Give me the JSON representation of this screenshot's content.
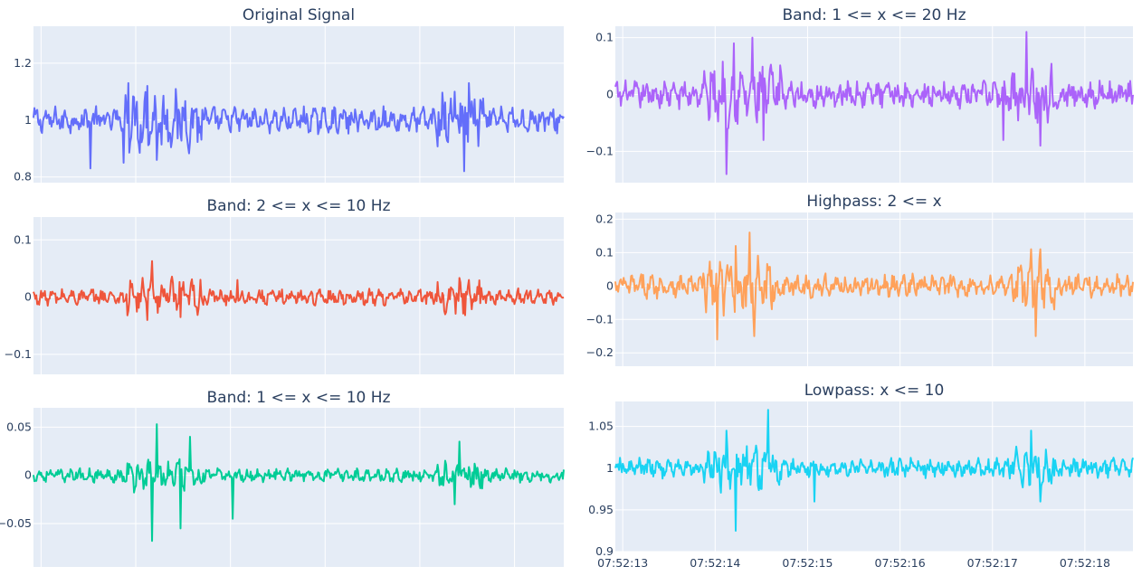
{
  "chart_data": [
    {
      "type": "line",
      "title": "Original Signal",
      "color": "#636efa",
      "ylim": [
        0.78,
        1.33
      ],
      "yticks": [
        {
          "v": 0.8,
          "label": "0.8"
        },
        {
          "v": 1.0,
          "label": "1"
        },
        {
          "v": 1.2,
          "label": "1.2"
        }
      ],
      "baseline": 1.0,
      "amp_scale": 0.04,
      "spikes": [
        {
          "t": 0.6,
          "v": 0.83
        },
        {
          "t": 0.95,
          "v": 0.85
        },
        {
          "t": 1.0,
          "v": 1.13
        },
        {
          "t": 1.2,
          "v": 1.12
        },
        {
          "t": 1.3,
          "v": 0.86
        },
        {
          "t": 4.55,
          "v": 0.82
        },
        {
          "t": 4.6,
          "v": 1.13
        },
        {
          "t": 4.45,
          "v": 1.1
        }
      ]
    },
    {
      "type": "line",
      "title": "Band: 1 <= x <= 20 Hz",
      "color": "#ab63fa",
      "ylim": [
        -0.155,
        0.12
      ],
      "yticks": [
        {
          "v": -0.1,
          "label": "−0.1"
        },
        {
          "v": 0.0,
          "label": "0"
        },
        {
          "v": 0.1,
          "label": "0.1"
        }
      ],
      "baseline": 0.0,
      "amp_scale": 0.02,
      "spikes": [
        {
          "t": 1.2,
          "v": -0.14
        },
        {
          "t": 1.28,
          "v": 0.09
        },
        {
          "t": 1.48,
          "v": 0.1
        },
        {
          "t": 1.6,
          "v": -0.08
        },
        {
          "t": 4.45,
          "v": 0.11
        },
        {
          "t": 4.6,
          "v": -0.09
        },
        {
          "t": 4.2,
          "v": -0.08
        }
      ]
    },
    {
      "type": "line",
      "title": "Band: 2 <= x <= 10 Hz",
      "color": "#ef553b",
      "ylim": [
        -0.135,
        0.14
      ],
      "yticks": [
        {
          "v": -0.1,
          "label": "−0.1"
        },
        {
          "v": 0.0,
          "label": "0"
        },
        {
          "v": 0.1,
          "label": "0.1"
        }
      ],
      "baseline": 0.0,
      "amp_scale": 0.012,
      "spikes": [
        {
          "t": 1.25,
          "v": 0.063
        },
        {
          "t": 1.2,
          "v": -0.04
        },
        {
          "t": 1.55,
          "v": -0.035
        },
        {
          "t": 2.15,
          "v": 0.03
        },
        {
          "t": 4.35,
          "v": -0.03
        },
        {
          "t": 4.6,
          "v": 0.03
        }
      ]
    },
    {
      "type": "line",
      "title": "Highpass: 2 <= x",
      "color": "#ffa15a",
      "ylim": [
        -0.24,
        0.22
      ],
      "yticks": [
        {
          "v": -0.2,
          "label": "−0.2"
        },
        {
          "v": -0.1,
          "label": "−0.1"
        },
        {
          "v": 0.0,
          "label": "0"
        },
        {
          "v": 0.1,
          "label": "0.1"
        },
        {
          "v": 0.2,
          "label": "0.2"
        }
      ],
      "baseline": 0.0,
      "amp_scale": 0.03,
      "spikes": [
        {
          "t": 1.1,
          "v": -0.16
        },
        {
          "t": 1.45,
          "v": 0.16
        },
        {
          "t": 1.5,
          "v": -0.15
        },
        {
          "t": 1.3,
          "v": 0.12
        },
        {
          "t": 4.55,
          "v": -0.15
        },
        {
          "t": 4.5,
          "v": 0.11
        },
        {
          "t": 4.6,
          "v": 0.11
        }
      ]
    },
    {
      "type": "line",
      "title": "Band: 1 <= x <= 10 Hz",
      "color": "#00cc96",
      "ylim": [
        -0.095,
        0.07
      ],
      "yticks": [
        {
          "v": -0.05,
          "label": "−0.05"
        },
        {
          "v": 0.0,
          "label": "0"
        },
        {
          "v": 0.05,
          "label": "0.05"
        }
      ],
      "baseline": 0.0,
      "amp_scale": 0.006,
      "spikes": [
        {
          "t": 1.25,
          "v": -0.068
        },
        {
          "t": 1.3,
          "v": 0.053
        },
        {
          "t": 1.55,
          "v": -0.055
        },
        {
          "t": 1.65,
          "v": 0.04
        },
        {
          "t": 2.1,
          "v": -0.045
        },
        {
          "t": 4.5,
          "v": 0.035
        },
        {
          "t": 4.45,
          "v": -0.03
        }
      ]
    },
    {
      "type": "line",
      "title": "Lowpass: x <= 10",
      "color": "#19d3f3",
      "ylim": [
        0.9,
        1.08
      ],
      "yticks": [
        {
          "v": 0.9,
          "label": "0.9"
        },
        {
          "v": 0.95,
          "label": "0.95"
        },
        {
          "v": 1.0,
          "label": "1"
        },
        {
          "v": 1.05,
          "label": "1.05"
        }
      ],
      "baseline": 1.0,
      "amp_scale": 0.01,
      "spikes": [
        {
          "t": 1.3,
          "v": 0.925
        },
        {
          "t": 1.65,
          "v": 1.07
        },
        {
          "t": 1.2,
          "v": 1.045
        },
        {
          "t": 2.15,
          "v": 0.96
        },
        {
          "t": 4.5,
          "v": 1.045
        },
        {
          "t": 4.6,
          "v": 0.96
        }
      ],
      "xticks": [
        "07:52:13",
        "07:52:14",
        "07:52:15",
        "07:52:16",
        "07:52:17",
        "07:52:18"
      ]
    }
  ],
  "time_span_seconds": [
    0,
    5.6
  ]
}
